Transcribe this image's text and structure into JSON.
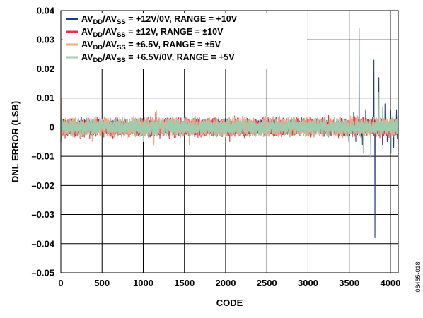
{
  "chart_data": {
    "type": "line",
    "xlabel": "CODE",
    "ylabel": "DNL ERROR (LSB)",
    "xlim": [
      0,
      4095
    ],
    "ylim": [
      -0.05,
      0.04
    ],
    "xticks": [
      0,
      500,
      1000,
      1500,
      2000,
      2500,
      3000,
      3500,
      4000
    ],
    "yticks": [
      0.04,
      0.03,
      0.02,
      0.01,
      0,
      -0.01,
      -0.02,
      -0.03,
      -0.04,
      -0.05
    ],
    "ytick_labels": [
      "0.04",
      "0.03",
      "0.02",
      "0.01",
      "0",
      "–0.01",
      "–0.02",
      "–0.03",
      "–0.04",
      "–0.05"
    ],
    "grid": true,
    "legend_position": "top",
    "figure_id": "06465-018",
    "series": [
      {
        "name": "AVDD/AVSS = +12V/0V, RANGE = +10V",
        "legend": {
          "main": "AV",
          "sub1": "DD",
          "mid": "/AV",
          "sub2": "SS",
          "rest": " = +12V/0V, RANGE = +10V"
        },
        "color": "#1f3f7a",
        "noise_amplitude": 0.0035,
        "spikes": [
          [
            3555,
            0.005
          ],
          [
            3580,
            -0.005
          ],
          [
            3620,
            0.034
          ],
          [
            3660,
            -0.006
          ],
          [
            3700,
            0.006
          ],
          [
            3760,
            -0.006
          ],
          [
            3800,
            0.023
          ],
          [
            3812,
            -0.038
          ],
          [
            3860,
            0.017
          ],
          [
            3905,
            -0.006
          ],
          [
            3935,
            0.008
          ],
          [
            3962,
            -0.005
          ],
          [
            4005,
            0.006
          ],
          [
            4040,
            -0.007
          ],
          [
            4075,
            0.006
          ],
          [
            4085,
            -0.004
          ]
        ]
      },
      {
        "name": "AVDD/AVSS = ±12V, RANGE = ±10V",
        "legend": {
          "main": "AV",
          "sub1": "DD",
          "mid": "/AV",
          "sub2": "SS",
          "rest": " = ±12V, RANGE = ±10V"
        },
        "color": "#e2334f",
        "noise_amplitude": 0.004,
        "spikes": [
          [
            350,
            -0.004
          ],
          [
            1150,
            0.005
          ],
          [
            2050,
            -0.005
          ],
          [
            3250,
            0.004
          ]
        ]
      },
      {
        "name": "AVDD/AVSS = ±6.5V, RANGE = ±5V",
        "legend": {
          "main": "AV",
          "sub1": "DD",
          "mid": "/AV",
          "sub2": "SS",
          "rest": " = ±6.5V, RANGE = ±5V"
        },
        "color": "#f4a57a",
        "noise_amplitude": 0.004,
        "spikes": [
          [
            3,
            0.01
          ],
          [
            5,
            -0.005
          ],
          [
            380,
            -0.005
          ],
          [
            1130,
            -0.006
          ],
          [
            1160,
            0.006
          ],
          [
            1560,
            -0.006
          ],
          [
            1595,
            0.005
          ],
          [
            1800,
            -0.004
          ]
        ]
      },
      {
        "name": "AVDD/AVSS = +6.5V/0V, RANGE = +5V",
        "legend": {
          "main": "AV",
          "sub1": "DD",
          "mid": "/AV",
          "sub2": "SS",
          "rest": " = +6.5V/0V, RANGE = +5V"
        },
        "color": "#9ccdb0",
        "noise_amplitude": 0.0035,
        "spikes": [
          [
            1000,
            -0.005
          ],
          [
            2500,
            0.004
          ],
          [
            3490,
            -0.005
          ],
          [
            3670,
            -0.009
          ],
          [
            3760,
            -0.0105
          ],
          [
            3862,
            0.012
          ],
          [
            3905,
            0.007
          ],
          [
            4010,
            -0.009
          ],
          [
            4060,
            0.004
          ]
        ]
      }
    ]
  }
}
